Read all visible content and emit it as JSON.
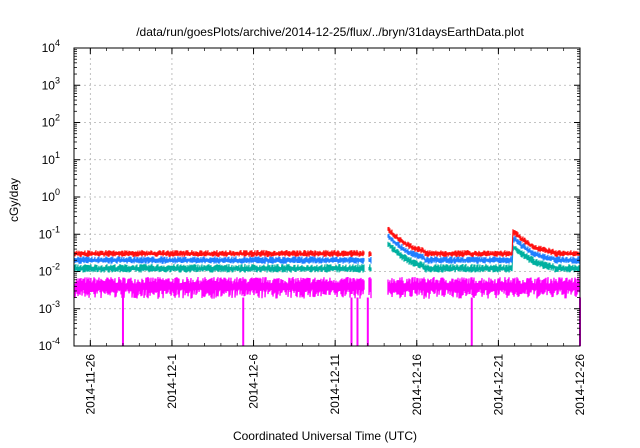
{
  "chart_data": {
    "type": "line",
    "title": "/data/run/goesPlots/archive/2014-12-25/flux/../bryn/31daysEarthData.plot",
    "xlabel": "Coordinated Universal Time (UTC)",
    "ylabel": "cGy/day",
    "yscale": "log",
    "ylim": [
      0.0001,
      10000
    ],
    "xlim": [
      "2014-11-25",
      "2014-12-26"
    ],
    "xtick_labels": [
      "2014-11-26",
      "2014-12-1",
      "2014-12-6",
      "2014-12-11",
      "2014-12-16",
      "2014-12-21",
      "2014-12-26"
    ],
    "xtick_dates": [
      "2014-11-26",
      "2014-12-01",
      "2014-12-06",
      "2014-12-11",
      "2014-12-16",
      "2014-12-21",
      "2014-12-26"
    ],
    "ytick_labels": [
      {
        "base": "10",
        "exp": "-4"
      },
      {
        "base": "10",
        "exp": "-3"
      },
      {
        "base": "10",
        "exp": "-2"
      },
      {
        "base": "10",
        "exp": "-1"
      },
      {
        "base": "10",
        "exp": "0"
      },
      {
        "base": "10",
        "exp": "1"
      },
      {
        "base": "10",
        "exp": "2"
      },
      {
        "base": "10",
        "exp": "3"
      },
      {
        "base": "10",
        "exp": "4"
      }
    ],
    "ytick_values": [
      0.0001,
      0.001,
      0.01,
      0.1,
      1,
      10,
      100,
      1000,
      10000
    ],
    "grid": true,
    "legend": "none",
    "data_gap": [
      "2014-12-13",
      "2014-12-14"
    ],
    "series": [
      {
        "color": "#ff00ff",
        "typical": 0.004,
        "spread": 0.6
      },
      {
        "color": "#00b0a0",
        "typical": 0.012,
        "spread": 0.25
      },
      {
        "color": "#1f7fff",
        "typical": 0.02,
        "spread": 0.22
      },
      {
        "color": "#ff1010",
        "typical": 0.03,
        "spread": 0.2
      }
    ],
    "magenta_drops": [
      "2014-11-28",
      "2014-12-05",
      "2014-12-12",
      "2014-12-12",
      "2014-12-13",
      "2014-12-19",
      "2014-12-26"
    ],
    "event_peaks": [
      {
        "date": "2014-12-14",
        "value": 0.18
      },
      {
        "date": "2014-12-22",
        "value": 0.11
      }
    ]
  }
}
